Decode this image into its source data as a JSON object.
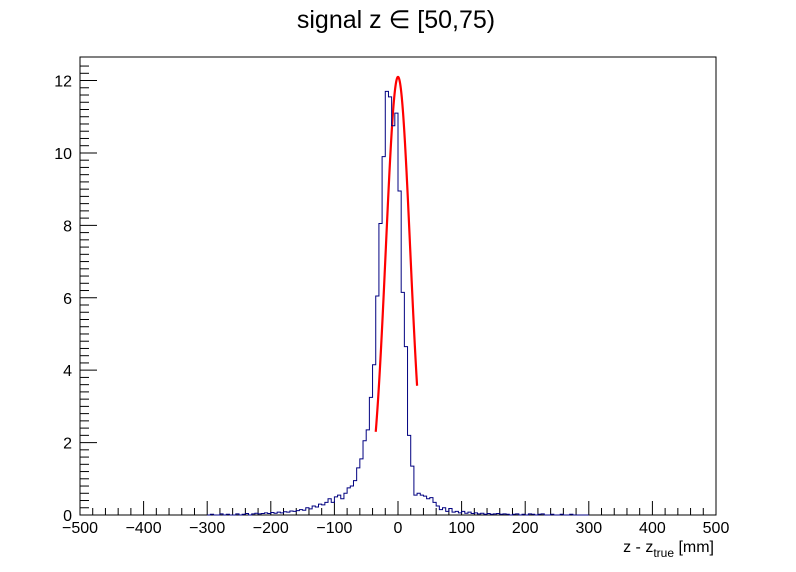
{
  "chart_data": {
    "type": "histogram",
    "title_main": "signal z ",
    "title_symbol": "∈",
    "title_range": " [50,75)",
    "xlabel_main": "z - z",
    "xlabel_sub": "true",
    "xlabel_unit": " [mm]",
    "ylabel": "",
    "xlim": [
      -500,
      500
    ],
    "ylim": [
      0,
      12.65
    ],
    "grid": false,
    "legend": "none",
    "x_ticks": [
      -500,
      -400,
      -300,
      -200,
      -100,
      0,
      100,
      200,
      300,
      400,
      500
    ],
    "x_tick_labels": [
      "−500",
      "−400",
      "−300",
      "−200",
      "−100",
      "0",
      "100",
      "200",
      "300",
      "400",
      "500"
    ],
    "y_ticks": [
      0,
      2,
      4,
      6,
      8,
      10,
      12
    ],
    "y_tick_labels": [
      "0",
      "2",
      "4",
      "6",
      "8",
      "10",
      "12"
    ],
    "series": [
      {
        "kind": "histogram",
        "color": "#000080",
        "bin_edges_x": [
          -300,
          -295,
          -290,
          -285,
          -280,
          -275,
          -270,
          -265,
          -260,
          -255,
          -250,
          -245,
          -240,
          -235,
          -230,
          -225,
          -220,
          -215,
          -210,
          -205,
          -200,
          -195,
          -190,
          -185,
          -180,
          -175,
          -170,
          -165,
          -160,
          -155,
          -150,
          -145,
          -140,
          -135,
          -130,
          -125,
          -120,
          -115,
          -110,
          -105,
          -100,
          -95,
          -90,
          -85,
          -80,
          -75,
          -70,
          -65,
          -60,
          -55,
          -50,
          -45,
          -40,
          -35,
          -30,
          -25,
          -20,
          -15,
          -10,
          -5,
          0,
          5,
          10,
          15,
          20,
          25,
          30,
          35,
          40,
          45,
          50,
          55,
          60,
          65,
          70,
          75,
          80,
          85,
          90,
          95,
          100,
          105,
          110,
          115,
          120,
          125,
          130,
          135,
          140,
          145,
          150,
          155,
          160,
          165,
          170,
          175,
          180,
          185,
          190,
          195,
          200,
          205,
          210,
          215,
          220,
          225,
          230,
          235,
          240,
          245,
          250,
          255,
          260,
          265,
          270,
          275,
          280,
          285,
          290,
          295,
          300
        ],
        "counts": [
          0,
          0.02,
          0,
          0,
          0.03,
          0,
          0.02,
          0,
          0,
          0.03,
          0,
          0.02,
          0.04,
          0,
          0.03,
          0.05,
          0.03,
          0.04,
          0.06,
          0.04,
          0.07,
          0.05,
          0.08,
          0.06,
          0.09,
          0.08,
          0.11,
          0.1,
          0.12,
          0.15,
          0.13,
          0.2,
          0.17,
          0.25,
          0.22,
          0.3,
          0.28,
          0.35,
          0.45,
          0.35,
          0.5,
          0.55,
          0.45,
          0.6,
          0.75,
          0.8,
          0.95,
          1.3,
          1.55,
          2.05,
          2.35,
          3.25,
          4.15,
          6.05,
          8.05,
          9.9,
          11.7,
          11.55,
          10.75,
          11.1,
          8.95,
          6.15,
          4.65,
          2.2,
          1.35,
          0.55,
          0.6,
          0.55,
          0.52,
          0.45,
          0.48,
          0.35,
          0.25,
          0.15,
          0.2,
          0.1,
          0.18,
          0.08,
          0.1,
          0.06,
          0.1,
          0.05,
          0.08,
          0.04,
          0.06,
          0.03,
          0.05,
          0.02,
          0.04,
          0.02,
          0.03,
          0.04,
          0.02,
          0.03,
          0.02,
          0,
          0.02,
          0.03,
          0,
          0.02,
          0,
          0.03,
          0.02,
          0,
          0.02,
          0.03,
          0,
          0,
          0.02,
          0,
          0,
          0.02,
          0,
          0,
          0.02,
          0,
          0,
          0,
          0,
          0
        ]
      },
      {
        "kind": "fit",
        "color": "#ff0000",
        "amplitude": 12.1,
        "mean": 0,
        "sigma": 19.2,
        "x_range": [
          -35,
          30
        ]
      }
    ]
  }
}
